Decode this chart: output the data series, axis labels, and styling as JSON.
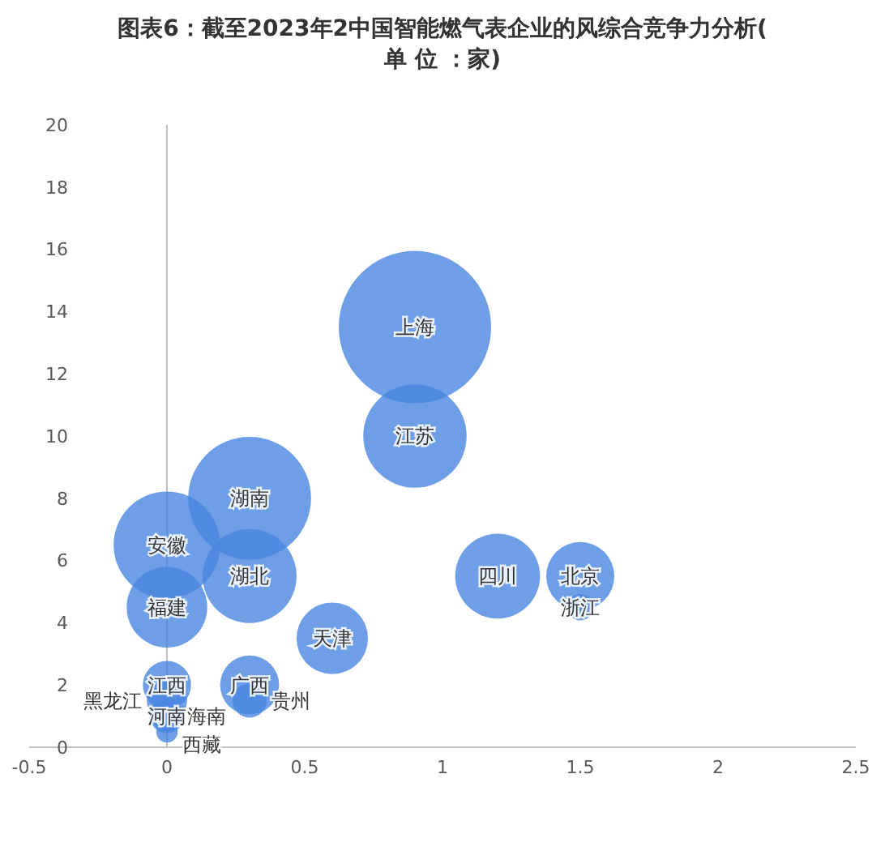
{
  "chart_data": {
    "type": "bubble",
    "title": "图表6：截至2023年2中国智能燃气表企业的风综合竞争力分析(单 位 ：家)",
    "xlim": [
      -0.5,
      2.5
    ],
    "xticks": [
      -0.5,
      0,
      0.5,
      1,
      1.5,
      2,
      2.5
    ],
    "ylim": [
      0,
      20
    ],
    "yticks": [
      0,
      2,
      4,
      6,
      8,
      10,
      12,
      14,
      16,
      18,
      20
    ],
    "series": [
      {
        "name": "上海",
        "color": "#4a86e0",
        "x": [
          0.9
        ],
        "values": [
          13.5
        ],
        "sizes": [
          1
        ]
      },
      {
        "name": "江苏",
        "color": "#4a86e0",
        "x": [
          0.9
        ],
        "values": [
          10
        ],
        "sizes": [
          0.46
        ]
      },
      {
        "name": "湖南",
        "color": "#4a86e0",
        "x": [
          0.3
        ],
        "values": [
          8
        ],
        "sizes": [
          0.65
        ]
      },
      {
        "name": "湖北",
        "color": "#4a86e0",
        "x": [
          0.3
        ],
        "values": [
          5.5
        ],
        "sizes": [
          0.38
        ]
      },
      {
        "name": "安徽",
        "color": "#4a86e0",
        "x": [
          0
        ],
        "values": [
          6.5
        ],
        "sizes": [
          0.49
        ]
      },
      {
        "name": "福建",
        "color": "#4a86e0",
        "x": [
          0
        ],
        "values": [
          4.5
        ],
        "sizes": [
          0.28
        ]
      },
      {
        "name": "天津",
        "color": "#4a86e0",
        "x": [
          0.6
        ],
        "values": [
          3.5
        ],
        "sizes": [
          0.22
        ]
      },
      {
        "name": "四川",
        "color": "#4a86e0",
        "x": [
          1.2
        ],
        "values": [
          5.5
        ],
        "sizes": [
          0.31
        ]
      },
      {
        "name": "北京",
        "color": "#4a86e0",
        "x": [
          1.5
        ],
        "values": [
          5.5
        ],
        "sizes": [
          0.2
        ]
      },
      {
        "name": "浙江",
        "color": "#4a86e0",
        "x": [
          1.5
        ],
        "values": [
          4.5
        ],
        "sizes": [
          0.03
        ]
      },
      {
        "name": "广西",
        "color": "#4a86e0",
        "x": [
          0.3
        ],
        "values": [
          2
        ],
        "sizes": [
          0.15
        ]
      },
      {
        "name": "贵州",
        "color": "#4a86e0",
        "x": [
          0.3
        ],
        "values": [
          1.5
        ],
        "sizes": [
          0.05
        ]
      },
      {
        "name": "江西",
        "color": "#4a86e0",
        "x": [
          0
        ],
        "values": [
          2
        ],
        "sizes": [
          0.1
        ]
      },
      {
        "name": "黑龙江",
        "color": "#4a86e0",
        "x": [
          0
        ],
        "values": [
          1.5
        ],
        "sizes": [
          0.07
        ]
      },
      {
        "name": "河南",
        "color": "#4a86e0",
        "x": [
          0
        ],
        "values": [
          1
        ],
        "sizes": [
          0.05
        ]
      },
      {
        "name": "海南",
        "color": "#4a86e0",
        "x": [
          0
        ],
        "values": [
          1
        ],
        "sizes": [
          0.04
        ]
      },
      {
        "name": "西藏",
        "color": "#4a86e0",
        "x": [
          0
        ],
        "values": [
          0.5
        ],
        "sizes": [
          0.02
        ]
      }
    ]
  }
}
